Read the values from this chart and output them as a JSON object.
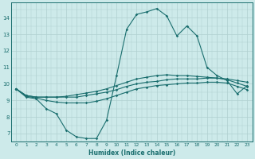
{
  "xlabel": "Humidex (Indice chaleur)",
  "bg_color": "#cdeaea",
  "grid_color": "#b0d0d0",
  "line_color": "#1a6e6e",
  "xlim": [
    -0.5,
    23.5
  ],
  "ylim": [
    6.5,
    14.9
  ],
  "xticks": [
    0,
    1,
    2,
    3,
    4,
    5,
    6,
    7,
    8,
    9,
    10,
    11,
    12,
    13,
    14,
    15,
    16,
    17,
    18,
    19,
    20,
    21,
    22,
    23
  ],
  "yticks": [
    7,
    8,
    9,
    10,
    11,
    12,
    13,
    14
  ],
  "line1": [
    9.7,
    9.2,
    9.1,
    8.5,
    8.2,
    7.2,
    6.8,
    6.7,
    6.7,
    7.8,
    10.5,
    13.3,
    14.2,
    14.35,
    14.55,
    14.1,
    12.9,
    13.5,
    12.9,
    11.0,
    10.5,
    10.2,
    9.4,
    9.9
  ],
  "line2": [
    9.7,
    9.3,
    9.2,
    9.2,
    9.2,
    9.2,
    9.2,
    9.3,
    9.4,
    9.5,
    9.65,
    9.85,
    10.0,
    10.1,
    10.15,
    10.25,
    10.3,
    10.3,
    10.3,
    10.35,
    10.35,
    10.3,
    10.2,
    10.1
  ],
  "line3": [
    9.7,
    9.3,
    9.2,
    9.2,
    9.2,
    9.25,
    9.35,
    9.45,
    9.55,
    9.7,
    9.9,
    10.1,
    10.3,
    10.4,
    10.5,
    10.55,
    10.5,
    10.5,
    10.45,
    10.4,
    10.35,
    10.25,
    10.05,
    9.85
  ],
  "line4": [
    9.7,
    9.25,
    9.15,
    9.0,
    8.9,
    8.85,
    8.85,
    8.85,
    8.95,
    9.1,
    9.3,
    9.5,
    9.7,
    9.8,
    9.9,
    9.95,
    10.0,
    10.05,
    10.05,
    10.1,
    10.1,
    10.05,
    9.85,
    9.65
  ]
}
